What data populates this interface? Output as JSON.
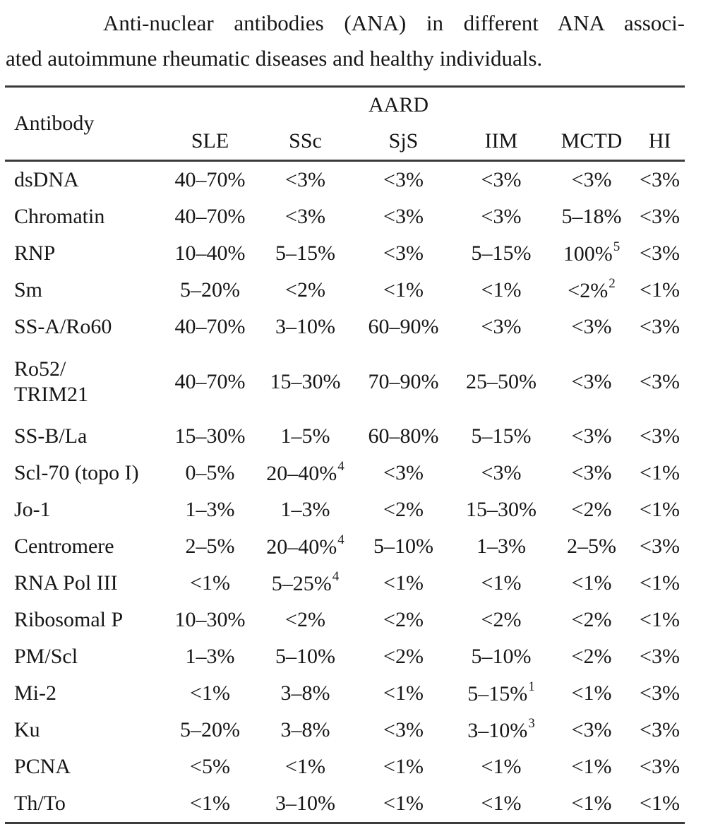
{
  "caption": {
    "line1": "Anti-nuclear antibodies (ANA) in different ANA associ-",
    "line2": "ated autoimmune rheumatic diseases and healthy individuals."
  },
  "table": {
    "row_header": "Antibody",
    "group_header": "AARD",
    "columns": [
      "SLE",
      "SSc",
      "SjS",
      "IIM",
      "MCTD",
      "HI"
    ],
    "rows": [
      {
        "antibody": "dsDNA",
        "values": [
          "40–70%",
          "<3%",
          "<3%",
          "<3%",
          "<3%",
          "<3%"
        ]
      },
      {
        "antibody": "Chromatin",
        "values": [
          "40–70%",
          "<3%",
          "<3%",
          "<3%",
          "5–18%",
          "<3%"
        ]
      },
      {
        "antibody": "RNP",
        "values": [
          "10–40%",
          "5–15%",
          "<3%",
          "5–15%",
          "100%",
          "<3%"
        ],
        "sups": [
          "",
          "",
          "",
          "",
          "5",
          ""
        ]
      },
      {
        "antibody": "Sm",
        "values": [
          "5–20%",
          "<2%",
          "<1%",
          "<1%",
          "<2%",
          "<1%"
        ],
        "sups": [
          "",
          "",
          "",
          "",
          "2",
          ""
        ]
      },
      {
        "antibody": "SS-A/Ro60",
        "values": [
          "40–70%",
          "3–10%",
          "60–90%",
          "<3%",
          "<3%",
          "<3%"
        ]
      },
      {
        "antibody": "Ro52/TRIM21",
        "label_lines": [
          "Ro52/",
          "TRIM21"
        ],
        "values": [
          "40–70%",
          "15–30%",
          "70–90%",
          "25–50%",
          "<3%",
          "<3%"
        ]
      },
      {
        "antibody": "SS-B/La",
        "values": [
          "15–30%",
          "1–5%",
          "60–80%",
          "5–15%",
          "<3%",
          "<3%"
        ]
      },
      {
        "antibody": "Scl-70 (topo I)",
        "values": [
          "0–5%",
          "20–40%",
          "<3%",
          "<3%",
          "<3%",
          "<1%"
        ],
        "sups": [
          "",
          "4",
          "",
          "",
          "",
          ""
        ]
      },
      {
        "antibody": "Jo-1",
        "values": [
          "1–3%",
          "1–3%",
          "<2%",
          "15–30%",
          "<2%",
          "<1%"
        ]
      },
      {
        "antibody": "Centromere",
        "values": [
          "2–5%",
          "20–40%",
          "5–10%",
          "1–3%",
          "2–5%",
          "<3%"
        ],
        "sups": [
          "",
          "4",
          "",
          "",
          "",
          ""
        ]
      },
      {
        "antibody": "RNA Pol III",
        "values": [
          "<1%",
          "5–25%",
          "<1%",
          "<1%",
          "<1%",
          "<1%"
        ],
        "sups": [
          "",
          "4",
          "",
          "",
          "",
          ""
        ]
      },
      {
        "antibody": "Ribosomal P",
        "values": [
          "10–30%",
          "<2%",
          "<2%",
          "<2%",
          "<2%",
          "<1%"
        ]
      },
      {
        "antibody": "PM/Scl",
        "values": [
          "1–3%",
          "5–10%",
          "<2%",
          "5–10%",
          "<2%",
          "<3%"
        ]
      },
      {
        "antibody": "Mi-2",
        "values": [
          "<1%",
          "3–8%",
          "<1%",
          "5–15%",
          "<1%",
          "<3%"
        ],
        "sups": [
          "",
          "",
          "",
          "1",
          "",
          ""
        ]
      },
      {
        "antibody": "Ku",
        "values": [
          "5–20%",
          "3–8%",
          "<3%",
          "3–10%",
          "<3%",
          "<3%"
        ],
        "sups": [
          "",
          "",
          "",
          "3",
          "",
          ""
        ]
      },
      {
        "antibody": "PCNA",
        "values": [
          "<5%",
          "<1%",
          "<1%",
          "<1%",
          "<1%",
          "<3%"
        ]
      },
      {
        "antibody": "Th/To",
        "values": [
          "<1%",
          "3–10%",
          "<1%",
          "<1%",
          "<1%",
          "<1%"
        ]
      }
    ]
  },
  "colors": {
    "text": "#161616",
    "rule": "#3b3b3b",
    "background": "#ffffff"
  }
}
